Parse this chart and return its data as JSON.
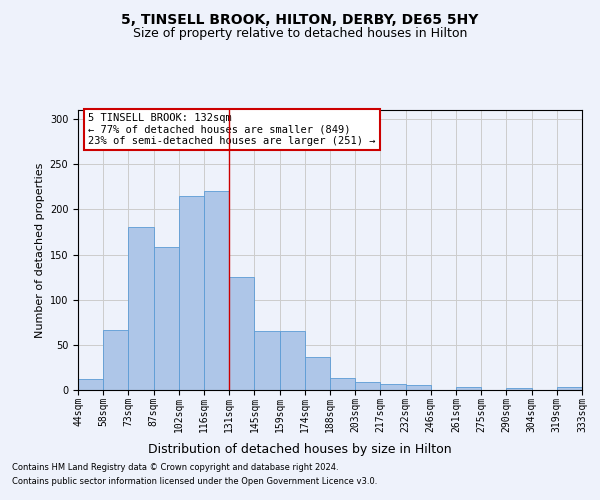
{
  "title": "5, TINSELL BROOK, HILTON, DERBY, DE65 5HY",
  "subtitle": "Size of property relative to detached houses in Hilton",
  "xlabel": "Distribution of detached houses by size in Hilton",
  "ylabel": "Number of detached properties",
  "footer1": "Contains HM Land Registry data © Crown copyright and database right 2024.",
  "footer2": "Contains public sector information licensed under the Open Government Licence v3.0.",
  "annotation_line1": "5 TINSELL BROOK: 132sqm",
  "annotation_line2": "← 77% of detached houses are smaller (849)",
  "annotation_line3": "23% of semi-detached houses are larger (251) →",
  "bar_values": [
    12,
    66,
    181,
    158,
    215,
    220,
    125,
    65,
    65,
    37,
    13,
    9,
    7,
    5,
    0,
    3,
    0,
    2,
    0,
    3
  ],
  "categories": [
    "44sqm",
    "58sqm",
    "73sqm",
    "87sqm",
    "102sqm",
    "116sqm",
    "131sqm",
    "145sqm",
    "159sqm",
    "174sqm",
    "188sqm",
    "203sqm",
    "217sqm",
    "232sqm",
    "246sqm",
    "261sqm",
    "275sqm",
    "290sqm",
    "304sqm",
    "319sqm",
    "333sqm"
  ],
  "bar_color": "#aec6e8",
  "bar_edge_color": "#5b9bd5",
  "vline_x": 6,
  "vline_color": "#cc0000",
  "ylim": [
    0,
    310
  ],
  "yticks": [
    0,
    50,
    100,
    150,
    200,
    250,
    300
  ],
  "annotation_box_color": "#ffffff",
  "annotation_box_edge": "#cc0000",
  "bg_color": "#eef2fb",
  "grid_color": "#cccccc",
  "title_fontsize": 10,
  "subtitle_fontsize": 9,
  "xlabel_fontsize": 9,
  "ylabel_fontsize": 8,
  "tick_fontsize": 7,
  "footer_fontsize": 6,
  "annot_fontsize": 7.5
}
